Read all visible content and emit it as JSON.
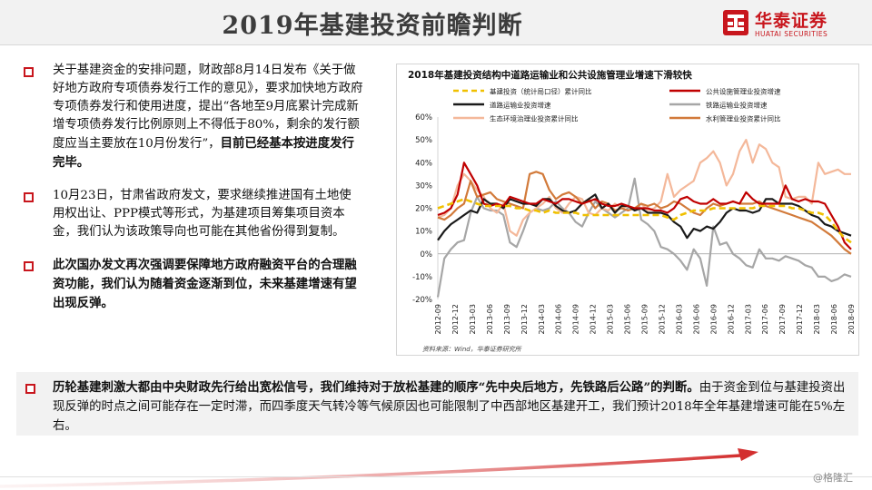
{
  "header": {
    "title": "2019年基建投资前瞻判断",
    "logo_cn": "华泰证券",
    "logo_en": "HUATAI SECURITIES"
  },
  "bullets": [
    {
      "parts": [
        {
          "text": "关于基建资金的安排问题，财政部8月14日发布《关于做好地方政府专项债券发行工作的意见》，要求加快地方政府专项债券发行和使用进度，提出“各地至9月底累计完成新增专项债券发行比例原则上不得低于80%，剩余的发行额度应当主要放在10月份发行”，",
          "bold": false
        },
        {
          "text": "目前已经基本按进度发行完毕。",
          "bold": true
        }
      ]
    },
    {
      "parts": [
        {
          "text": "10月23日，甘肃省政府发文，要求继续推进国有土地使用权出让、PPP模式等形式，为基建项目筹集项目资本金，我们认为该政策导向也可能在其他省份得到复制。",
          "bold": false
        }
      ]
    },
    {
      "parts": [
        {
          "text": "此次国办发文再次强调要保障地方政府融资平台的合理融资功能，我们认为随着资金逐渐到位，未来基建增速有望出现反弹。",
          "bold": true
        }
      ]
    }
  ],
  "bottom": {
    "bold_text": "历轮基建刺激大都由中央财政先行给出宽松信号，我们维持对于放松基建的顺序“先中央后地方，先铁路后公路”的判断。",
    "text": "由于资金到位与基建投资出现反弹的时点之间可能存在一定时滞，而四季度天气转冷等气候原因也可能限制了中西部地区基建开工，我们预计2018年全年基建增速可能在5%左右。"
  },
  "watermark": "@格隆汇",
  "chart_data": {
    "type": "line",
    "title": "2018年基建投资结构中道路运输业和公共设施管理业增速下滑较快",
    "source": "资料来源：Wind，华泰证券研究所",
    "ylim": [
      -20,
      60
    ],
    "yticks": [
      -20,
      -10,
      0,
      10,
      20,
      30,
      40,
      50,
      60
    ],
    "ytick_labels": [
      "-20%",
      "-10%",
      "0%",
      "10%",
      "20%",
      "30%",
      "40%",
      "50%",
      "60%"
    ],
    "x_labels": [
      "2012-09",
      "2012-12",
      "2013-03",
      "2013-06",
      "2013-09",
      "2013-12",
      "2014-03",
      "2014-06",
      "2014-09",
      "2014-12",
      "2015-03",
      "2015-06",
      "2015-09",
      "2015-12",
      "2016-03",
      "2016-06",
      "2016-09",
      "2016-12",
      "2017-03",
      "2017-06",
      "2017-09",
      "2017-12",
      "2018-03",
      "2018-06",
      "2018-09"
    ],
    "colors": {
      "infra": "#f0c000",
      "road": "#1a1a1a",
      "ecology": "#f4b89a",
      "public": "#c00000",
      "rail": "#a6a6a6",
      "water": "#d27a3a"
    },
    "series": [
      {
        "key": "infra",
        "name": "基建投资（统计局口径）累计同比",
        "dashed": true,
        "values": [
          20,
          21,
          22,
          23,
          24,
          23,
          22,
          21,
          21,
          21,
          21,
          21,
          20,
          20,
          19,
          19,
          18,
          19,
          18,
          18,
          18,
          18,
          17,
          17,
          17,
          17,
          17,
          17,
          17,
          17,
          17,
          17,
          17,
          17,
          17,
          16,
          15,
          17,
          18,
          19,
          19,
          19,
          20,
          20,
          20,
          20,
          20,
          20,
          20,
          21,
          21,
          21,
          21,
          21,
          20,
          20,
          19,
          18,
          18,
          17,
          14,
          10,
          7,
          5
        ]
      },
      {
        "key": "public",
        "name": "公共设施管理业投资增速",
        "values": [
          17,
          18,
          20,
          26,
          40,
          35,
          30,
          22,
          21,
          22,
          21,
          25,
          24,
          23,
          22,
          22,
          24,
          23,
          22,
          24,
          24,
          23,
          22,
          23,
          24,
          22,
          21,
          21,
          22,
          21,
          20,
          20,
          20,
          19,
          19,
          18,
          20,
          24,
          25,
          23,
          22,
          22,
          24,
          22,
          22,
          23,
          22,
          27,
          24,
          22,
          22,
          22,
          22,
          30,
          24,
          23,
          24,
          23,
          23,
          22,
          17,
          12,
          5,
          2
        ]
      },
      {
        "key": "road",
        "name": "道路运输业投资增速",
        "values": [
          6,
          10,
          13,
          15,
          17,
          19,
          18,
          24,
          22,
          22,
          20,
          24,
          23,
          22,
          22,
          21,
          24,
          24,
          21,
          19,
          18,
          19,
          22,
          24,
          26,
          20,
          22,
          18,
          21,
          21,
          19,
          20,
          18,
          18,
          18,
          17,
          14,
          12,
          7,
          11,
          10,
          12,
          11,
          14,
          18,
          20,
          19,
          19,
          18,
          19,
          24,
          24,
          22,
          22,
          22,
          21,
          19,
          17,
          16,
          13,
          12,
          10,
          9,
          8
        ]
      },
      {
        "key": "rail",
        "name": "铁路运输业投资增速",
        "values": [
          -19,
          -2,
          2,
          5,
          6,
          18,
          25,
          20,
          19,
          19,
          17,
          5,
          3,
          10,
          18,
          20,
          19,
          20,
          23,
          20,
          18,
          14,
          12,
          18,
          23,
          20,
          18,
          16,
          18,
          20,
          33,
          15,
          13,
          10,
          3,
          2,
          0,
          -3,
          -7,
          2,
          -2,
          -14,
          12,
          4,
          5,
          0,
          -2,
          -5,
          -6,
          2,
          -2,
          -2,
          -3,
          -1,
          -2,
          -3,
          -5,
          -6,
          -10,
          -10,
          -12,
          -11,
          -9,
          -10
        ]
      },
      {
        "key": "ecology",
        "name": "生态环境治理业投资累计同比",
        "values": [
          16,
          17,
          20,
          30,
          35,
          32,
          28,
          25,
          20,
          18,
          22,
          10,
          8,
          15,
          18,
          20,
          22,
          25,
          20,
          18,
          22,
          25,
          24,
          18,
          17,
          20,
          19,
          22,
          20,
          21,
          20,
          22,
          19,
          20,
          23,
          35,
          25,
          28,
          30,
          32,
          40,
          42,
          45,
          40,
          30,
          35,
          45,
          50,
          40,
          48,
          46,
          40,
          38,
          25,
          24,
          25,
          25,
          22,
          40,
          35,
          36,
          37,
          35,
          35
        ]
      },
      {
        "key": "water",
        "name": "水利管理业投资累计同比",
        "values": [
          16,
          15,
          17,
          20,
          22,
          32,
          25,
          26,
          27,
          24,
          23,
          22,
          21,
          20,
          35,
          36,
          35,
          28,
          24,
          26,
          27,
          25,
          22,
          24,
          20,
          23,
          22,
          19,
          20,
          19,
          20,
          22,
          21,
          22,
          20,
          21,
          23,
          22,
          20,
          18,
          17,
          20,
          22,
          21,
          22,
          23,
          22,
          22,
          22,
          23,
          21,
          20,
          19,
          18,
          17,
          16,
          15,
          14,
          12,
          10,
          8,
          5,
          2,
          0
        ]
      }
    ]
  }
}
